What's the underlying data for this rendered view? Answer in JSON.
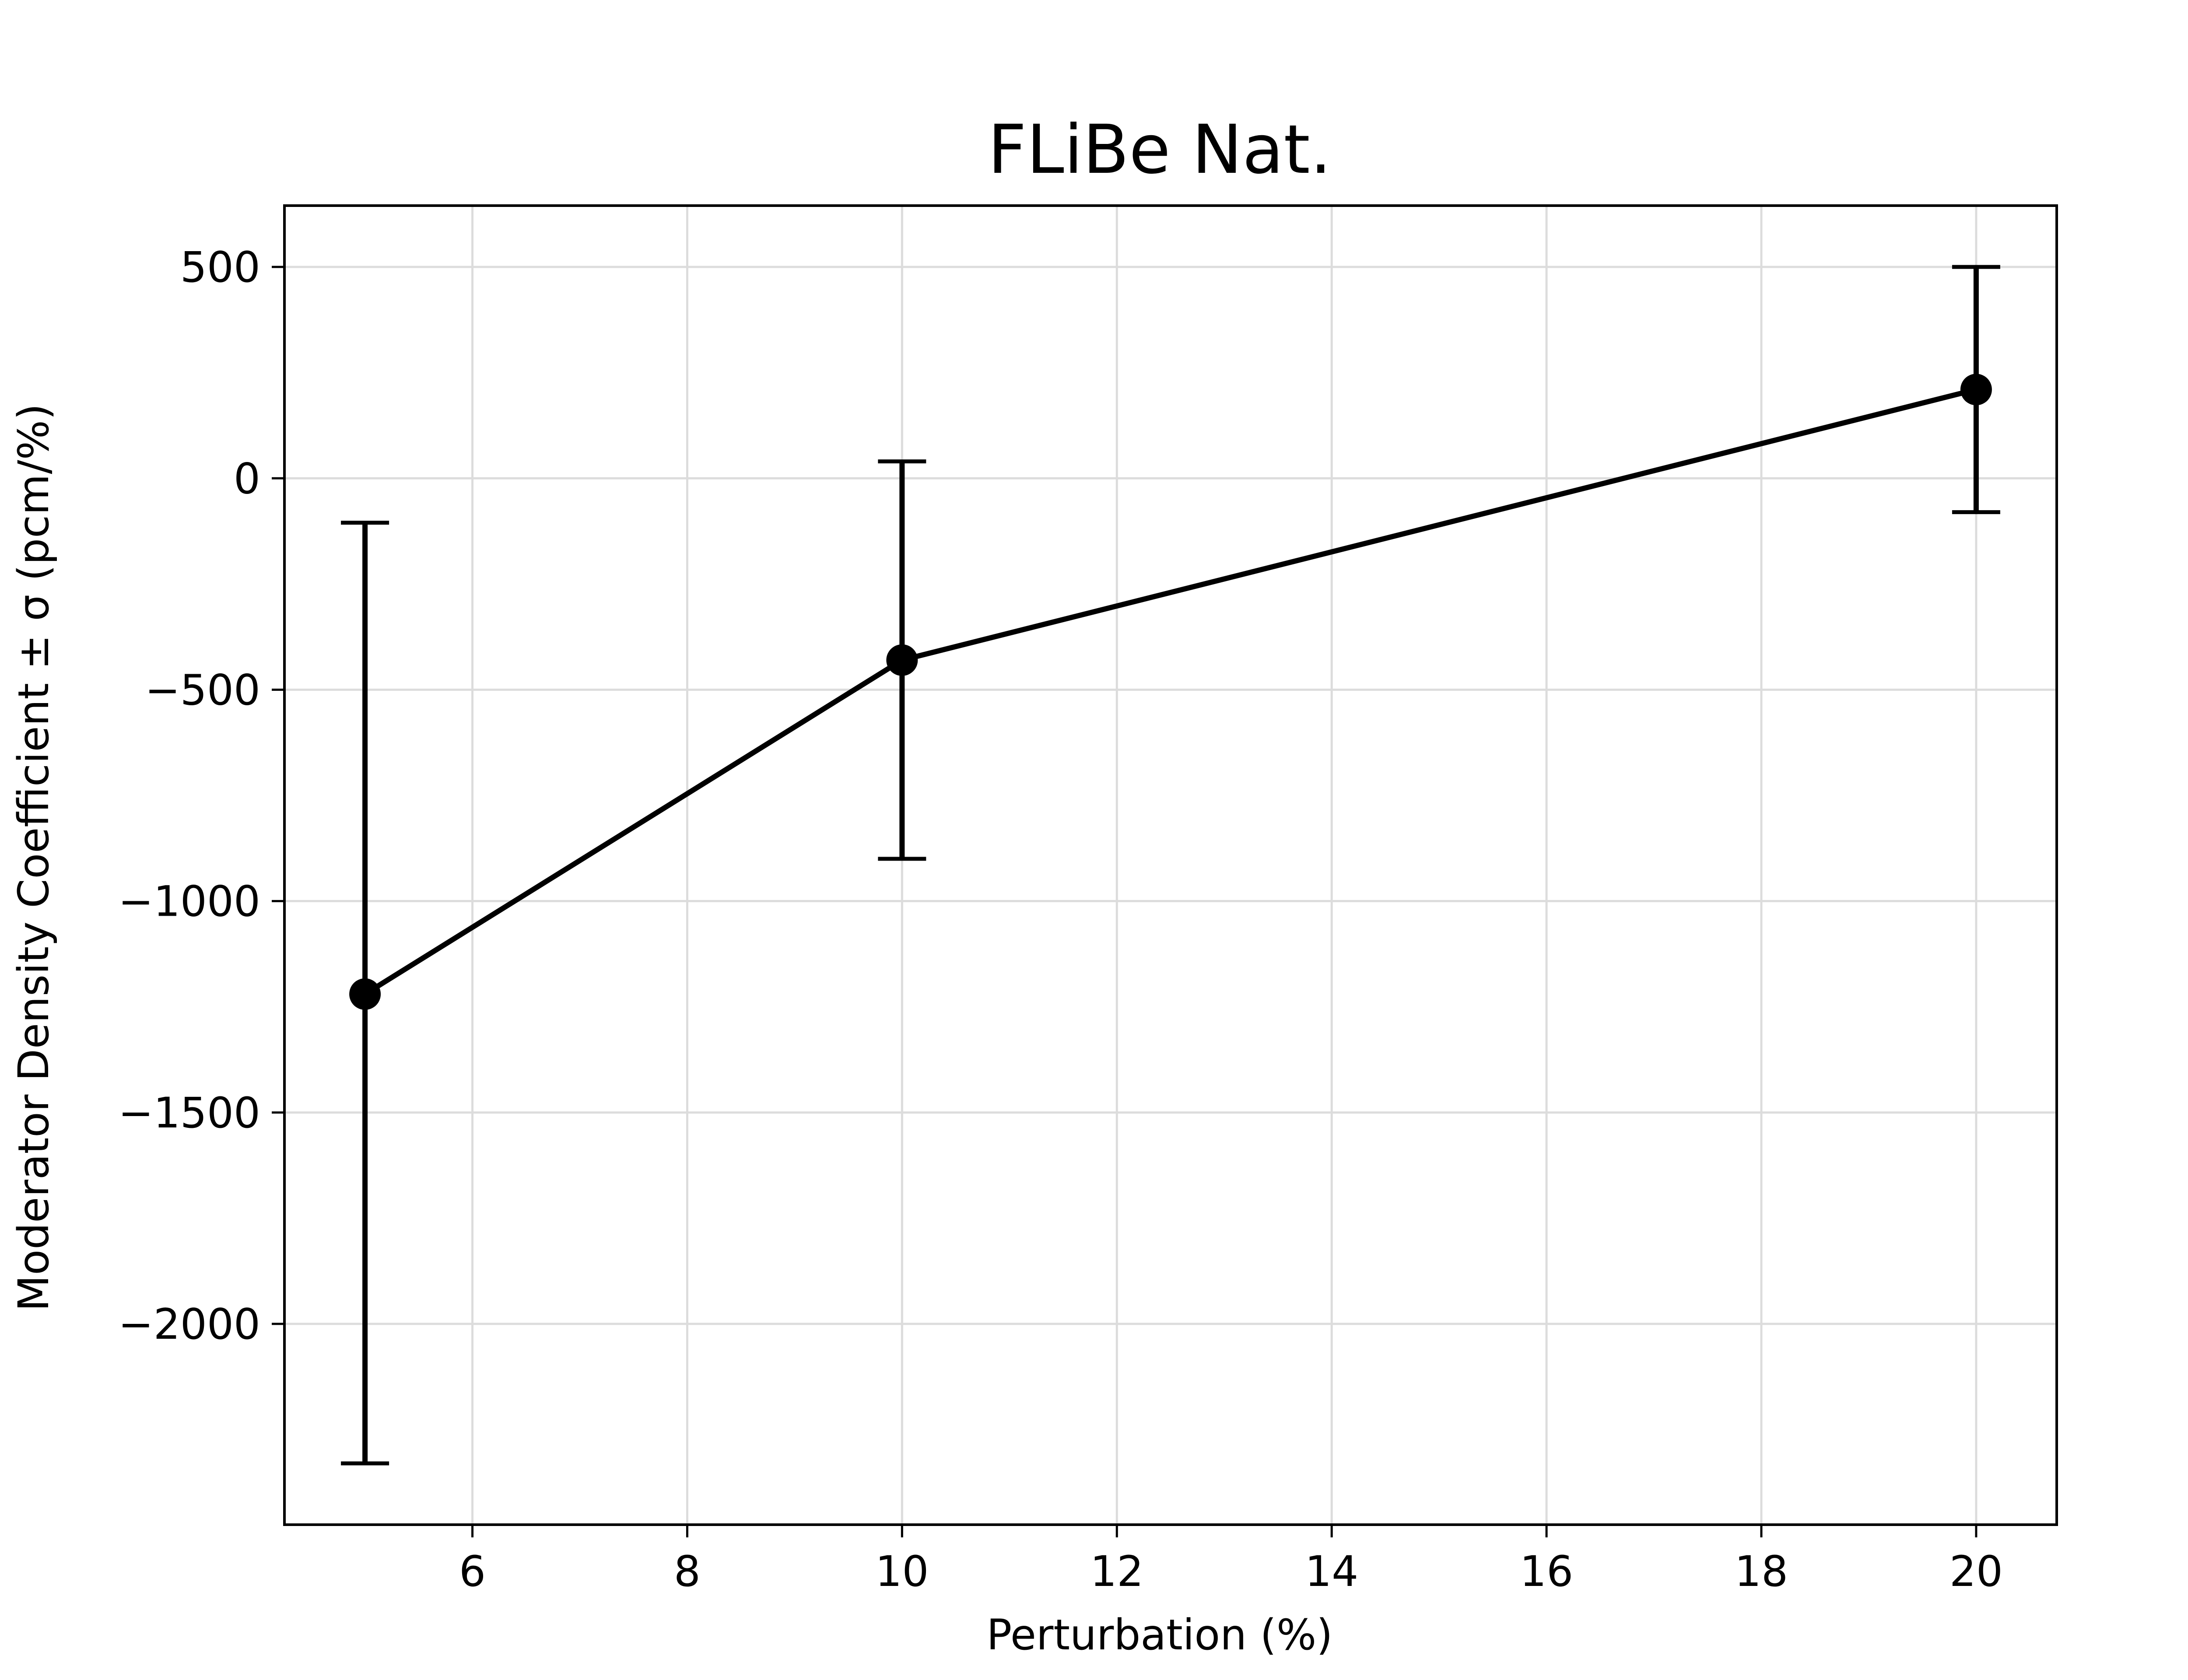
{
  "chart_data": {
    "type": "line",
    "title": "FLiBe Nat.",
    "xlabel": "Perturbation (%)",
    "ylabel": "Moderator Density Coefficient ± σ (pcm/%)",
    "xlim": [
      4.25,
      20.75
    ],
    "ylim": [
      -2475,
      645
    ],
    "xticks": [
      6,
      8,
      10,
      12,
      14,
      16,
      18,
      20
    ],
    "yticks": [
      500,
      0,
      -500,
      -1000,
      -1500,
      -2000
    ],
    "xtick_labels": [
      "6",
      "8",
      "10",
      "12",
      "14",
      "16",
      "18",
      "20"
    ],
    "ytick_labels": [
      "500",
      "0",
      "−500",
      "−1000",
      "−1500",
      "−2000"
    ],
    "grid": true,
    "series": [
      {
        "x": [
          5,
          10,
          20
        ],
        "y": [
          -1220,
          -430,
          210
        ],
        "yerr_low": [
          -2330,
          -900,
          -80
        ],
        "yerr_high": [
          -105,
          40,
          500
        ],
        "color": "#000000",
        "marker": "circle"
      }
    ]
  }
}
